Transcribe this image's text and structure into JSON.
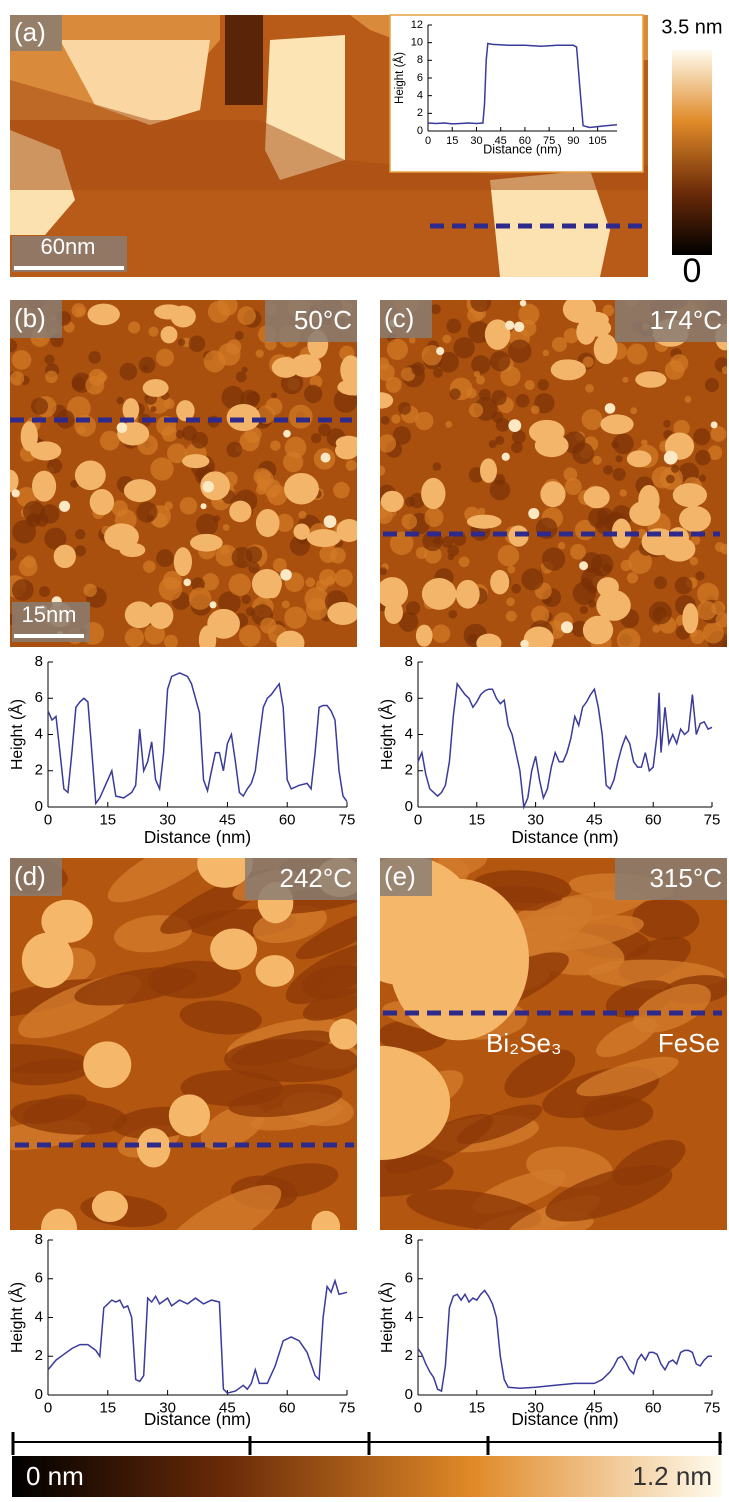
{
  "chart_data": [
    {
      "type": "line",
      "xlabel": "Distance (nm)",
      "ylabel": "Height (Å)",
      "color": "#3a3a9c",
      "x": [
        0,
        5,
        10,
        15,
        20,
        25,
        30,
        34,
        35,
        36,
        37,
        40,
        50,
        60,
        70,
        80,
        90,
        92,
        94,
        96,
        100,
        105,
        110,
        117
      ],
      "values": [
        0.9,
        0.85,
        0.9,
        0.8,
        0.85,
        0.9,
        0.85,
        0.9,
        3,
        8,
        9.9,
        9.8,
        9.7,
        9.7,
        9.6,
        9.7,
        9.7,
        9.5,
        5,
        0.6,
        0.4,
        0.5,
        0.6,
        0.7
      ],
      "xlim": [
        0,
        117
      ],
      "ylim": [
        0,
        12
      ],
      "xticks": [
        0,
        15,
        30,
        45,
        60,
        75,
        90,
        105
      ],
      "yticks": [
        0,
        2,
        4,
        6,
        8,
        10,
        12
      ]
    },
    {
      "type": "line",
      "xlabel": "Distance (nm)",
      "ylabel": "Height (Å)",
      "color": "#3a3a9c",
      "x": [
        0,
        1,
        2,
        3,
        4,
        5,
        6,
        7,
        8,
        9,
        10,
        11,
        12,
        13,
        15,
        16,
        17,
        19,
        21,
        22,
        23,
        24,
        25,
        26,
        27,
        28,
        29,
        30,
        31,
        33,
        35,
        36,
        37,
        38,
        39,
        40,
        41,
        42,
        43,
        44,
        45,
        46,
        47,
        48,
        49,
        50,
        51,
        52,
        53,
        54,
        55,
        56,
        57,
        58,
        59,
        60,
        61,
        63,
        65,
        66,
        67,
        68,
        69,
        70,
        71,
        72,
        73,
        74,
        75
      ],
      "values": [
        5.3,
        4.8,
        5,
        3,
        1,
        0.8,
        3,
        5.5,
        5.8,
        6,
        5.8,
        3,
        0.2,
        0.5,
        1.5,
        2,
        0.6,
        0.5,
        0.8,
        1.2,
        4.3,
        2,
        2.5,
        3.6,
        1.5,
        1,
        3,
        6.5,
        7.2,
        7.4,
        7.2,
        6.8,
        6,
        5.2,
        1.5,
        0.9,
        2,
        3,
        3,
        2,
        3.5,
        4,
        2.5,
        0.8,
        0.6,
        1,
        1.3,
        2,
        3.8,
        5.5,
        6,
        6.2,
        6.5,
        6.8,
        5.5,
        1.5,
        1,
        1.2,
        1.3,
        1,
        3,
        5.5,
        5.6,
        5.6,
        5.3,
        4.8,
        2,
        0.6,
        0.3
      ],
      "xlim": [
        0,
        75
      ],
      "ylim": [
        0,
        8
      ],
      "xticks": [
        0,
        15,
        30,
        45,
        60,
        75
      ],
      "yticks": [
        0,
        2,
        4,
        6,
        8
      ]
    },
    {
      "type": "line",
      "xlabel": "Distance (nm)",
      "ylabel": "Height (Å)",
      "color": "#3a3a9c",
      "x": [
        0,
        1,
        2,
        3,
        5,
        6,
        7,
        8,
        9,
        10,
        11,
        12,
        13,
        14,
        15,
        16,
        17,
        18,
        19,
        20,
        21,
        22,
        23,
        24,
        25,
        26,
        27,
        28,
        29,
        30,
        31,
        32,
        33,
        34,
        35,
        36,
        37,
        38,
        39,
        40,
        41,
        42,
        43,
        44,
        45,
        46,
        47,
        48,
        49,
        50,
        51,
        52,
        53,
        54,
        55,
        56,
        57,
        58,
        59,
        60,
        61,
        61.5,
        62,
        63,
        64,
        65,
        66,
        67,
        68,
        69,
        70,
        71,
        72,
        73,
        74,
        75
      ],
      "values": [
        2.5,
        3,
        1.8,
        1,
        0.6,
        0.8,
        1.2,
        2.5,
        5,
        6.8,
        6.5,
        6.2,
        6,
        5.5,
        5.8,
        6.2,
        6.4,
        6.5,
        6.5,
        6,
        5.7,
        5.9,
        4.5,
        4,
        3,
        2,
        0,
        0.5,
        2,
        2.8,
        1.5,
        0.5,
        1,
        2.2,
        3,
        2.5,
        2.5,
        3,
        3.8,
        5,
        4.5,
        5.5,
        5.8,
        6.2,
        6.5,
        5.5,
        4,
        1.2,
        1,
        1.5,
        2.5,
        3.3,
        3.9,
        3.5,
        2.5,
        2.2,
        2.2,
        3,
        2,
        2.2,
        4,
        6.3,
        3,
        5.5,
        3.5,
        4,
        3.5,
        4.3,
        4,
        4.2,
        6.2,
        4,
        4.6,
        4.7,
        4.3,
        4.4
      ],
      "xlim": [
        0,
        75
      ],
      "ylim": [
        0,
        8
      ],
      "xticks": [
        0,
        15,
        30,
        45,
        60,
        75
      ],
      "yticks": [
        0,
        2,
        4,
        6,
        8
      ]
    },
    {
      "type": "line",
      "xlabel": "Distance (nm)",
      "ylabel": "Height (Å)",
      "color": "#3a3a9c",
      "x": [
        0,
        2,
        4,
        6,
        8,
        10,
        12,
        13,
        14,
        16,
        17,
        18,
        19,
        20,
        21,
        22,
        23,
        24,
        25,
        26,
        27,
        28,
        30,
        31,
        33,
        35,
        37,
        39,
        41,
        43,
        44,
        45,
        47,
        49,
        50,
        51,
        52,
        53,
        55,
        57,
        59,
        61,
        63,
        65,
        66,
        67,
        68,
        69,
        70,
        71,
        72,
        73,
        75
      ],
      "values": [
        1.3,
        1.8,
        2.1,
        2.4,
        2.6,
        2.6,
        2.3,
        2,
        4.5,
        4.9,
        4.8,
        4.9,
        4.5,
        4.6,
        4,
        0.8,
        0.7,
        1,
        5,
        4.8,
        5.1,
        4.7,
        5,
        4.6,
        4.9,
        4.7,
        5,
        4.7,
        4.9,
        4.8,
        0.3,
        0.1,
        0.2,
        0.5,
        0.3,
        0.6,
        1.3,
        0.6,
        0.6,
        1.5,
        2.8,
        3,
        2.8,
        2.2,
        1.6,
        1,
        0.8,
        4,
        5.6,
        5.3,
        5.9,
        5.2,
        5.3
      ],
      "xlim": [
        0,
        75
      ],
      "ylim": [
        0,
        8
      ],
      "xticks": [
        0,
        15,
        30,
        45,
        60,
        75
      ],
      "yticks": [
        0,
        2,
        4,
        6,
        8
      ]
    },
    {
      "type": "line",
      "xlabel": "Distance (nm)",
      "ylabel": "Height (Å)",
      "color": "#3a3a9c",
      "x": [
        0,
        1,
        2,
        3,
        4,
        5,
        6,
        7,
        8,
        9,
        10,
        11,
        12,
        13,
        14,
        15,
        16,
        17,
        18,
        19,
        20,
        21,
        22,
        23,
        26,
        30,
        35,
        40,
        45,
        47,
        49,
        50,
        51,
        52,
        53,
        54,
        55,
        56,
        57,
        58,
        59,
        60,
        61,
        62,
        63,
        64,
        65,
        66,
        67,
        68,
        69,
        70,
        71,
        72,
        73,
        74,
        75
      ],
      "values": [
        2.4,
        2.1,
        1.6,
        1.2,
        0.9,
        0.3,
        0.2,
        1.5,
        4.5,
        5.1,
        5.2,
        4.9,
        5.2,
        4.8,
        5,
        4.9,
        5.2,
        5.4,
        5.1,
        4.7,
        4,
        2,
        0.8,
        0.4,
        0.35,
        0.4,
        0.5,
        0.6,
        0.6,
        0.8,
        1.2,
        1.5,
        1.9,
        2,
        1.7,
        1.3,
        1.1,
        1.8,
        2.1,
        1.8,
        2.2,
        2.2,
        2.1,
        1.6,
        1.3,
        1.7,
        1.8,
        1.6,
        2.2,
        2.3,
        2.3,
        2.2,
        1.6,
        1.5,
        1.8,
        2,
        2
      ],
      "xlim": [
        0,
        75
      ],
      "ylim": [
        0,
        8
      ],
      "xticks": [
        0,
        15,
        30,
        45,
        60,
        75
      ],
      "yticks": [
        0,
        2,
        4,
        6,
        8
      ]
    }
  ],
  "images": [
    {
      "label": "(a)"
    },
    {
      "label": "(b)",
      "temperature": "50°C"
    },
    {
      "label": "(c)",
      "temperature": "174°C"
    },
    {
      "label": "(d)",
      "temperature": "242°C"
    },
    {
      "label": "(e)",
      "temperature": "315°C"
    }
  ],
  "scale_bars": [
    "60nm",
    "15nm"
  ],
  "annotations": [
    "Bi₂Se₃",
    "FeSe"
  ],
  "colorbars": [
    {
      "max_label": "3.5 nm",
      "min_label": "0"
    },
    {
      "min_label": "0 nm",
      "max_label": "1.2 nm"
    }
  ]
}
